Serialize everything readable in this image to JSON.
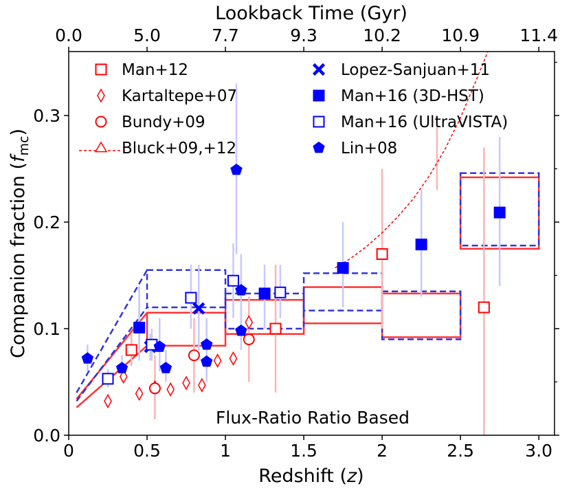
{
  "chart_data": {
    "type": "scatter",
    "title": "",
    "annotation": "Flux-Ratio Ratio Based",
    "xlabel": "Redshift (z)",
    "xlabel_parts": {
      "pre": "Redshift (",
      "var": "z",
      "post": ")"
    },
    "ylabel": "Companion fraction (f_mc)",
    "ylabel_parts": {
      "pre": "Companion fraction (",
      "var": "f",
      "sub": "mc",
      "post": ")"
    },
    "top_xlabel": "Lookback Time (Gyr)",
    "xlim": [
      0,
      3.1
    ],
    "ylim": [
      0,
      0.36
    ],
    "x_ticks": [
      0,
      0.5,
      1,
      1.5,
      2,
      2.5,
      3
    ],
    "x_tick_labels": [
      "0",
      "0.5",
      "1",
      "1.5",
      "2",
      "2.5",
      "3.0"
    ],
    "y_ticks": [
      0,
      0.1,
      0.2,
      0.3
    ],
    "y_tick_labels": [
      "0.0",
      "0.1",
      "0.2",
      "0.3"
    ],
    "y_minor_ticks": [
      0.05,
      0.15,
      0.25,
      0.35
    ],
    "top_ticks": [
      0,
      0.5,
      1,
      1.5,
      2,
      2.5,
      3
    ],
    "top_tick_labels": [
      "0.0",
      "5.0",
      "7.7",
      "9.3",
      "10.2",
      "10.9",
      "11.4"
    ],
    "colors": {
      "red": "#ff0000",
      "blue": "#0000ff",
      "red_err": "#ffb3b3",
      "blue_err": "#c8c8ff",
      "red_box": "#ff3333",
      "blue_box": "#3333dd"
    },
    "legend": [
      {
        "label": "Man+12",
        "marker": "open-square",
        "color": "red"
      },
      {
        "label": "Kartaltepe+07",
        "marker": "open-diamond",
        "color": "red"
      },
      {
        "label": "Bundy+09",
        "marker": "open-circle",
        "color": "red"
      },
      {
        "label": "Bluck+09,+12",
        "marker": "dashed-triangle",
        "color": "red"
      },
      {
        "label": "Lopez-Sanjuan+11",
        "marker": "x",
        "color": "blue"
      },
      {
        "label": "Man+16 (3D-HST)",
        "marker": "filled-square",
        "color": "blue"
      },
      {
        "label": "Man+16 (UltraVISTA)",
        "marker": "open-square",
        "color": "blue"
      },
      {
        "label": "Lin+08",
        "marker": "pentagon",
        "color": "blue"
      }
    ],
    "series": [
      {
        "name": "Man+12",
        "marker": "open-square",
        "color": "red",
        "points": [
          {
            "x": 0.4,
            "y": 0.08,
            "lo": 0.065,
            "hi": 0.095
          },
          {
            "x": 1.32,
            "y": 0.1,
            "lo": 0.04,
            "hi": 0.16
          },
          {
            "x": 2.0,
            "y": 0.17,
            "lo": 0.1,
            "hi": 0.25
          },
          {
            "x": 2.65,
            "y": 0.12,
            "lo": 0.0,
            "hi": 0.27
          }
        ]
      },
      {
        "name": "Kartaltepe+07",
        "marker": "open-diamond",
        "color": "red",
        "points": [
          {
            "x": 0.25,
            "y": 0.032
          },
          {
            "x": 0.35,
            "y": 0.055
          },
          {
            "x": 0.45,
            "y": 0.039
          },
          {
            "x": 0.55,
            "y": 0.045
          },
          {
            "x": 0.65,
            "y": 0.043
          },
          {
            "x": 0.75,
            "y": 0.049
          },
          {
            "x": 0.85,
            "y": 0.047
          },
          {
            "x": 0.95,
            "y": 0.07
          },
          {
            "x": 1.05,
            "y": 0.072
          },
          {
            "x": 1.15,
            "y": 0.106
          }
        ]
      },
      {
        "name": "Bundy+09",
        "marker": "open-circle",
        "color": "red",
        "points": [
          {
            "x": 0.55,
            "y": 0.044,
            "lo": 0.015,
            "hi": 0.075
          },
          {
            "x": 0.8,
            "y": 0.075,
            "lo": 0.04,
            "hi": 0.11
          },
          {
            "x": 1.15,
            "y": 0.09,
            "lo": 0.05,
            "hi": 0.13
          }
        ]
      },
      {
        "name": "Bluck+09,+12",
        "marker": "dashed-triangle",
        "color": "red",
        "points": [
          {
            "x": 2.35,
            "y": 0.26,
            "lo": 0.23,
            "hi": 0.3
          }
        ],
        "curve": [
          {
            "x": 1.7,
            "y": 0.157
          },
          {
            "x": 1.8,
            "y": 0.166
          },
          {
            "x": 1.9,
            "y": 0.177
          },
          {
            "x": 2.0,
            "y": 0.19
          },
          {
            "x": 2.1,
            "y": 0.205
          },
          {
            "x": 2.2,
            "y": 0.222
          },
          {
            "x": 2.3,
            "y": 0.243
          },
          {
            "x": 2.4,
            "y": 0.268
          },
          {
            "x": 2.5,
            "y": 0.298
          },
          {
            "x": 2.6,
            "y": 0.333
          },
          {
            "x": 2.68,
            "y": 0.362
          }
        ]
      },
      {
        "name": "Lopez-Sanjuan+11",
        "marker": "x",
        "color": "blue",
        "points": [
          {
            "x": 0.52,
            "y": 0.083,
            "lo": 0.07,
            "hi": 0.095
          },
          {
            "x": 0.83,
            "y": 0.119,
            "lo": 0.08,
            "hi": 0.16
          }
        ]
      },
      {
        "name": "Man+16 (3D-HST)",
        "marker": "filled-square",
        "color": "blue",
        "points": [
          {
            "x": 0.45,
            "y": 0.101,
            "lo": 0.07,
            "hi": 0.13
          },
          {
            "x": 1.25,
            "y": 0.133,
            "lo": 0.1,
            "hi": 0.16
          },
          {
            "x": 1.75,
            "y": 0.157,
            "lo": 0.12,
            "hi": 0.2
          },
          {
            "x": 2.25,
            "y": 0.179,
            "lo": 0.13,
            "hi": 0.23
          },
          {
            "x": 2.75,
            "y": 0.209,
            "lo": 0.14,
            "hi": 0.28
          }
        ]
      },
      {
        "name": "Man+16 (UltraVISTA)",
        "marker": "open-square",
        "color": "blue",
        "points": [
          {
            "x": 0.25,
            "y": 0.053,
            "lo": 0.045,
            "hi": 0.062
          },
          {
            "x": 0.53,
            "y": 0.085,
            "lo": 0.07,
            "hi": 0.1
          },
          {
            "x": 0.78,
            "y": 0.129,
            "lo": 0.1,
            "hi": 0.16
          },
          {
            "x": 1.05,
            "y": 0.145,
            "lo": 0.11,
            "hi": 0.18
          },
          {
            "x": 1.35,
            "y": 0.134,
            "lo": 0.11,
            "hi": 0.16
          }
        ]
      },
      {
        "name": "Lin+08",
        "marker": "pentagon",
        "color": "blue",
        "points": [
          {
            "x": 0.12,
            "y": 0.072,
            "lo": 0.06,
            "hi": 0.085
          },
          {
            "x": 0.34,
            "y": 0.063,
            "lo": 0.05,
            "hi": 0.075
          },
          {
            "x": 0.45,
            "y": 0.101,
            "lo": 0.08,
            "hi": 0.14
          },
          {
            "x": 0.58,
            "y": 0.083,
            "lo": 0.06,
            "hi": 0.11
          },
          {
            "x": 0.62,
            "y": 0.063,
            "lo": 0.05,
            "hi": 0.08
          },
          {
            "x": 0.88,
            "y": 0.085,
            "lo": 0.06,
            "hi": 0.11
          },
          {
            "x": 0.88,
            "y": 0.069,
            "lo": 0.05,
            "hi": 0.09
          },
          {
            "x": 1.07,
            "y": 0.249,
            "lo": 0.17,
            "hi": 0.33
          },
          {
            "x": 1.1,
            "y": 0.136,
            "lo": 0.1,
            "hi": 0.17
          },
          {
            "x": 1.1,
            "y": 0.098,
            "lo": 0.08,
            "hi": 0.12
          }
        ]
      }
    ],
    "boxes": [
      {
        "name": "red-box",
        "color": "red",
        "style": "solid",
        "bins": [
          {
            "x0": 0.5,
            "x1": 1.0,
            "y0": 0.084,
            "y1": 0.115
          },
          {
            "x0": 1.0,
            "x1": 1.5,
            "y0": 0.095,
            "y1": 0.127
          },
          {
            "x0": 1.5,
            "x1": 2.0,
            "y0": 0.105,
            "y1": 0.139
          },
          {
            "x0": 2.0,
            "x1": 2.5,
            "y0": 0.092,
            "y1": 0.133
          },
          {
            "x0": 2.5,
            "x1": 3.0,
            "y0": 0.175,
            "y1": 0.242
          }
        ],
        "wedge": {
          "x0": 0.05,
          "x1": 0.5,
          "lo0": 0.026,
          "lo1": 0.084,
          "hi0": 0.034,
          "hi1": 0.115
        }
      },
      {
        "name": "blue-box",
        "color": "blue",
        "style": "dashed",
        "bins": [
          {
            "x0": 0.5,
            "x1": 1.0,
            "y0": 0.12,
            "y1": 0.155
          },
          {
            "x0": 1.0,
            "x1": 1.5,
            "y0": 0.1,
            "y1": 0.133
          },
          {
            "x0": 1.5,
            "x1": 2.0,
            "y0": 0.117,
            "y1": 0.152
          },
          {
            "x0": 2.0,
            "x1": 2.5,
            "y0": 0.09,
            "y1": 0.135
          },
          {
            "x0": 2.5,
            "x1": 3.0,
            "y0": 0.178,
            "y1": 0.246
          }
        ],
        "wedge": {
          "x0": 0.05,
          "x1": 0.5,
          "lo0": 0.032,
          "lo1": 0.12,
          "hi0": 0.04,
          "hi1": 0.155
        }
      }
    ]
  }
}
